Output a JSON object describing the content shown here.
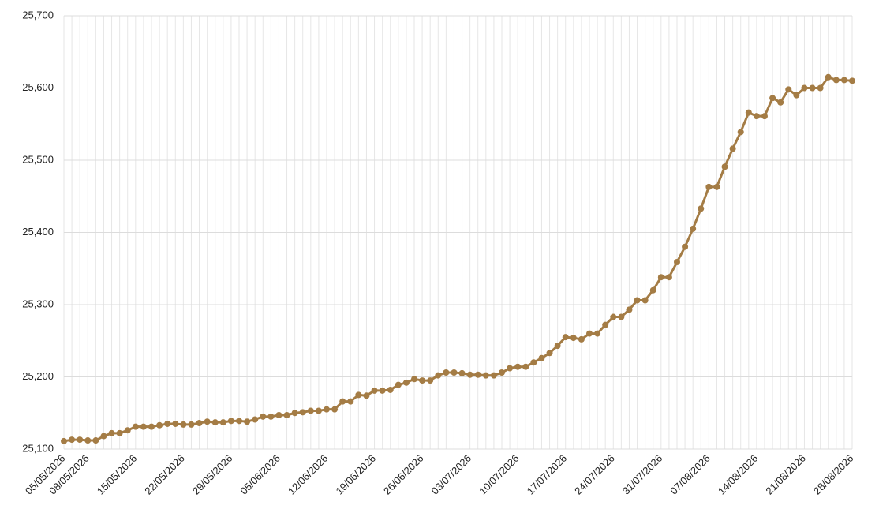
{
  "chart_data": {
    "type": "line",
    "x": [
      "05/05/2026",
      null,
      null,
      "08/05/2026",
      null,
      null,
      null,
      null,
      null,
      "15/05/2026",
      null,
      null,
      null,
      null,
      null,
      "22/05/2026",
      null,
      null,
      null,
      null,
      null,
      "29/05/2026",
      null,
      null,
      null,
      null,
      null,
      "05/06/2026",
      null,
      null,
      null,
      null,
      null,
      "12/06/2026",
      null,
      null,
      null,
      null,
      null,
      "19/06/2026",
      null,
      null,
      null,
      null,
      null,
      "26/06/2026",
      null,
      null,
      null,
      null,
      null,
      "03/07/2026",
      null,
      null,
      null,
      null,
      null,
      "10/07/2026",
      null,
      null,
      null,
      null,
      null,
      "17/07/2026",
      null,
      null,
      null,
      null,
      null,
      "24/07/2026",
      null,
      null,
      null,
      null,
      null,
      "31/07/2026",
      null,
      null,
      null,
      null,
      null,
      "07/08/2026",
      null,
      null,
      null,
      null,
      null,
      "14/08/2026",
      null,
      null,
      null,
      null,
      null,
      "21/08/2026",
      null,
      null,
      null,
      null,
      null,
      "28/08/2026"
    ],
    "series": [
      {
        "color": "#a47c45",
        "values": [
          25111,
          25113,
          25113,
          25112,
          25112,
          25118,
          25122,
          25122,
          25126,
          25131,
          25131,
          25131,
          25133,
          25135,
          25135,
          25134,
          25134,
          25136,
          25138,
          25137,
          25137,
          25139,
          25139,
          25138,
          25141,
          25145,
          25145,
          25147,
          25147,
          25150,
          25151,
          25153,
          25153,
          25155,
          25155,
          25166,
          25166,
          25175,
          25174,
          25181,
          25181,
          25182,
          25189,
          25192,
          25197,
          25195,
          25195,
          25202,
          25206,
          25206,
          25205,
          25203,
          25203,
          25202,
          25202,
          25206,
          25212,
          25214,
          25214,
          25220,
          25226,
          25233,
          25243,
          25255,
          25254,
          25252,
          25260,
          25260,
          25272,
          25283,
          25283,
          25293,
          25306,
          25306,
          25320,
          25338,
          25338,
          25359,
          25380,
          25405,
          25433,
          25463,
          25463,
          25491,
          25516,
          25539,
          25566,
          25561,
          25561,
          25586,
          25580,
          25598,
          25590,
          25600,
          25600,
          25600,
          25615,
          25611,
          25611,
          25610
        ]
      }
    ],
    "ylim": [
      25100,
      25700
    ],
    "yticks": [
      {
        "value": 25100,
        "label": "25,100"
      },
      {
        "value": 25200,
        "label": "25,200"
      },
      {
        "value": 25300,
        "label": "25,300"
      },
      {
        "value": 25400,
        "label": "25,400"
      },
      {
        "value": 25500,
        "label": "25,500"
      },
      {
        "value": 25600,
        "label": "25,600"
      },
      {
        "value": 25700,
        "label": "25,700"
      }
    ],
    "grid": true
  }
}
